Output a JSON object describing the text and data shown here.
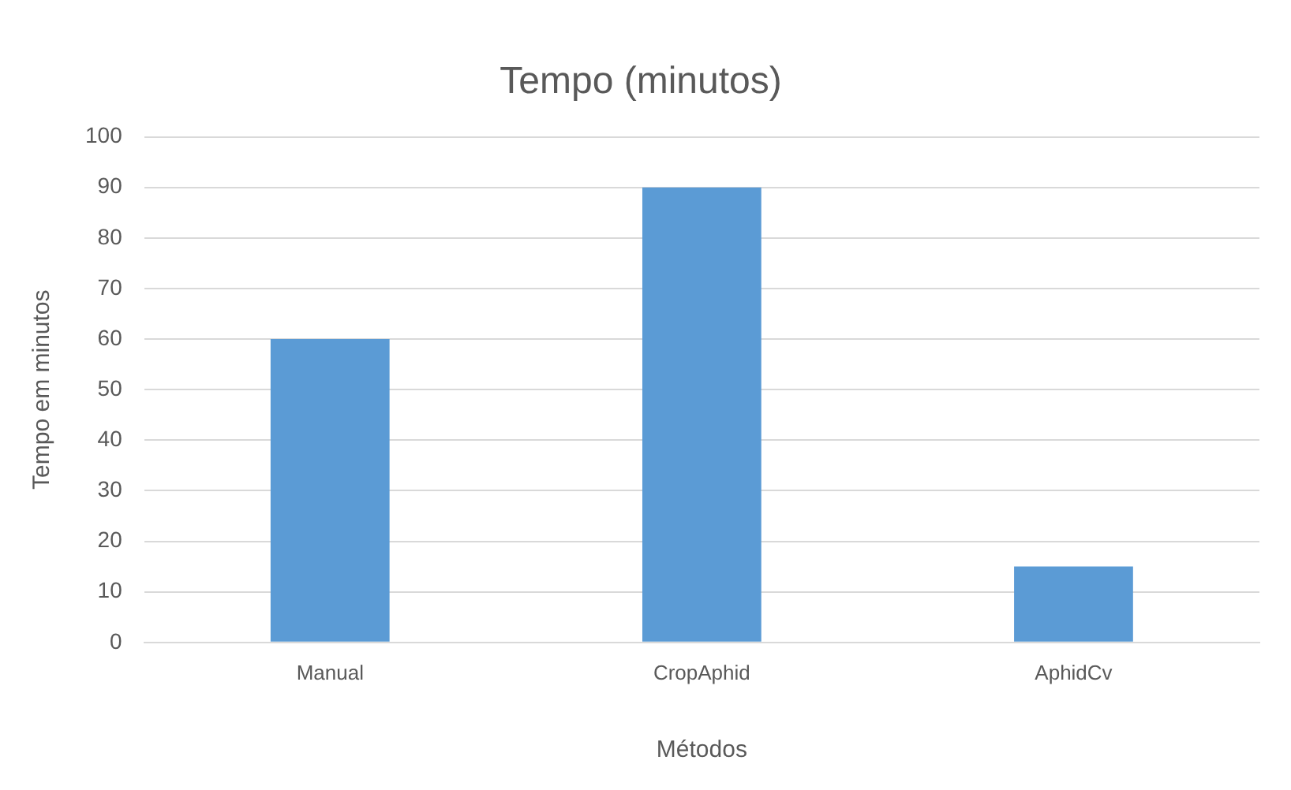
{
  "chart_data": {
    "type": "bar",
    "title": "Tempo (minutos)",
    "xlabel": "Métodos",
    "ylabel": "Tempo em minutos",
    "categories": [
      "Manual",
      "CropAphid",
      "AphidCv"
    ],
    "values": [
      60,
      90,
      15
    ],
    "color": "#5b9bd5",
    "ylim": [
      0,
      100
    ],
    "yticks": [
      0,
      10,
      20,
      30,
      40,
      50,
      60,
      70,
      80,
      90,
      100
    ],
    "grid": "y",
    "legend": false
  }
}
